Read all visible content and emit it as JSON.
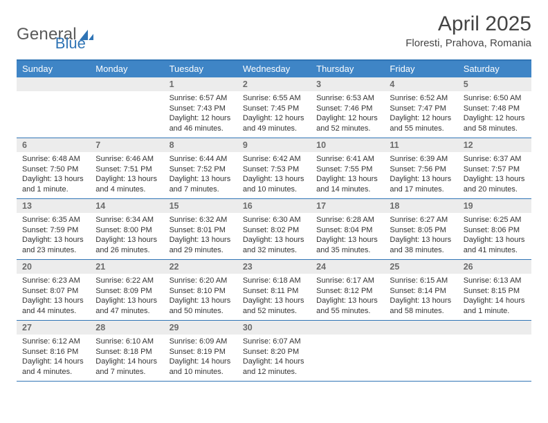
{
  "brand": {
    "part1": "General",
    "part2": "Blue"
  },
  "title": "April 2025",
  "location": "Floresti, Prahova, Romania",
  "colors": {
    "accent": "#3f85c6",
    "accent_border": "#2f74b5",
    "daynum_bg": "#ececec",
    "daynum_fg": "#6b6b6b",
    "text": "#333333",
    "logo_gray": "#5a5a5a"
  },
  "dow": [
    "Sunday",
    "Monday",
    "Tuesday",
    "Wednesday",
    "Thursday",
    "Friday",
    "Saturday"
  ],
  "weeks": [
    [
      {
        "n": "",
        "sr": "",
        "ss": "",
        "dl": ""
      },
      {
        "n": "",
        "sr": "",
        "ss": "",
        "dl": ""
      },
      {
        "n": "1",
        "sr": "Sunrise: 6:57 AM",
        "ss": "Sunset: 7:43 PM",
        "dl": "Daylight: 12 hours and 46 minutes."
      },
      {
        "n": "2",
        "sr": "Sunrise: 6:55 AM",
        "ss": "Sunset: 7:45 PM",
        "dl": "Daylight: 12 hours and 49 minutes."
      },
      {
        "n": "3",
        "sr": "Sunrise: 6:53 AM",
        "ss": "Sunset: 7:46 PM",
        "dl": "Daylight: 12 hours and 52 minutes."
      },
      {
        "n": "4",
        "sr": "Sunrise: 6:52 AM",
        "ss": "Sunset: 7:47 PM",
        "dl": "Daylight: 12 hours and 55 minutes."
      },
      {
        "n": "5",
        "sr": "Sunrise: 6:50 AM",
        "ss": "Sunset: 7:48 PM",
        "dl": "Daylight: 12 hours and 58 minutes."
      }
    ],
    [
      {
        "n": "6",
        "sr": "Sunrise: 6:48 AM",
        "ss": "Sunset: 7:50 PM",
        "dl": "Daylight: 13 hours and 1 minute."
      },
      {
        "n": "7",
        "sr": "Sunrise: 6:46 AM",
        "ss": "Sunset: 7:51 PM",
        "dl": "Daylight: 13 hours and 4 minutes."
      },
      {
        "n": "8",
        "sr": "Sunrise: 6:44 AM",
        "ss": "Sunset: 7:52 PM",
        "dl": "Daylight: 13 hours and 7 minutes."
      },
      {
        "n": "9",
        "sr": "Sunrise: 6:42 AM",
        "ss": "Sunset: 7:53 PM",
        "dl": "Daylight: 13 hours and 10 minutes."
      },
      {
        "n": "10",
        "sr": "Sunrise: 6:41 AM",
        "ss": "Sunset: 7:55 PM",
        "dl": "Daylight: 13 hours and 14 minutes."
      },
      {
        "n": "11",
        "sr": "Sunrise: 6:39 AM",
        "ss": "Sunset: 7:56 PM",
        "dl": "Daylight: 13 hours and 17 minutes."
      },
      {
        "n": "12",
        "sr": "Sunrise: 6:37 AM",
        "ss": "Sunset: 7:57 PM",
        "dl": "Daylight: 13 hours and 20 minutes."
      }
    ],
    [
      {
        "n": "13",
        "sr": "Sunrise: 6:35 AM",
        "ss": "Sunset: 7:59 PM",
        "dl": "Daylight: 13 hours and 23 minutes."
      },
      {
        "n": "14",
        "sr": "Sunrise: 6:34 AM",
        "ss": "Sunset: 8:00 PM",
        "dl": "Daylight: 13 hours and 26 minutes."
      },
      {
        "n": "15",
        "sr": "Sunrise: 6:32 AM",
        "ss": "Sunset: 8:01 PM",
        "dl": "Daylight: 13 hours and 29 minutes."
      },
      {
        "n": "16",
        "sr": "Sunrise: 6:30 AM",
        "ss": "Sunset: 8:02 PM",
        "dl": "Daylight: 13 hours and 32 minutes."
      },
      {
        "n": "17",
        "sr": "Sunrise: 6:28 AM",
        "ss": "Sunset: 8:04 PM",
        "dl": "Daylight: 13 hours and 35 minutes."
      },
      {
        "n": "18",
        "sr": "Sunrise: 6:27 AM",
        "ss": "Sunset: 8:05 PM",
        "dl": "Daylight: 13 hours and 38 minutes."
      },
      {
        "n": "19",
        "sr": "Sunrise: 6:25 AM",
        "ss": "Sunset: 8:06 PM",
        "dl": "Daylight: 13 hours and 41 minutes."
      }
    ],
    [
      {
        "n": "20",
        "sr": "Sunrise: 6:23 AM",
        "ss": "Sunset: 8:07 PM",
        "dl": "Daylight: 13 hours and 44 minutes."
      },
      {
        "n": "21",
        "sr": "Sunrise: 6:22 AM",
        "ss": "Sunset: 8:09 PM",
        "dl": "Daylight: 13 hours and 47 minutes."
      },
      {
        "n": "22",
        "sr": "Sunrise: 6:20 AM",
        "ss": "Sunset: 8:10 PM",
        "dl": "Daylight: 13 hours and 50 minutes."
      },
      {
        "n": "23",
        "sr": "Sunrise: 6:18 AM",
        "ss": "Sunset: 8:11 PM",
        "dl": "Daylight: 13 hours and 52 minutes."
      },
      {
        "n": "24",
        "sr": "Sunrise: 6:17 AM",
        "ss": "Sunset: 8:12 PM",
        "dl": "Daylight: 13 hours and 55 minutes."
      },
      {
        "n": "25",
        "sr": "Sunrise: 6:15 AM",
        "ss": "Sunset: 8:14 PM",
        "dl": "Daylight: 13 hours and 58 minutes."
      },
      {
        "n": "26",
        "sr": "Sunrise: 6:13 AM",
        "ss": "Sunset: 8:15 PM",
        "dl": "Daylight: 14 hours and 1 minute."
      }
    ],
    [
      {
        "n": "27",
        "sr": "Sunrise: 6:12 AM",
        "ss": "Sunset: 8:16 PM",
        "dl": "Daylight: 14 hours and 4 minutes."
      },
      {
        "n": "28",
        "sr": "Sunrise: 6:10 AM",
        "ss": "Sunset: 8:18 PM",
        "dl": "Daylight: 14 hours and 7 minutes."
      },
      {
        "n": "29",
        "sr": "Sunrise: 6:09 AM",
        "ss": "Sunset: 8:19 PM",
        "dl": "Daylight: 14 hours and 10 minutes."
      },
      {
        "n": "30",
        "sr": "Sunrise: 6:07 AM",
        "ss": "Sunset: 8:20 PM",
        "dl": "Daylight: 14 hours and 12 minutes."
      },
      {
        "n": "",
        "sr": "",
        "ss": "",
        "dl": ""
      },
      {
        "n": "",
        "sr": "",
        "ss": "",
        "dl": ""
      },
      {
        "n": "",
        "sr": "",
        "ss": "",
        "dl": ""
      }
    ]
  ]
}
